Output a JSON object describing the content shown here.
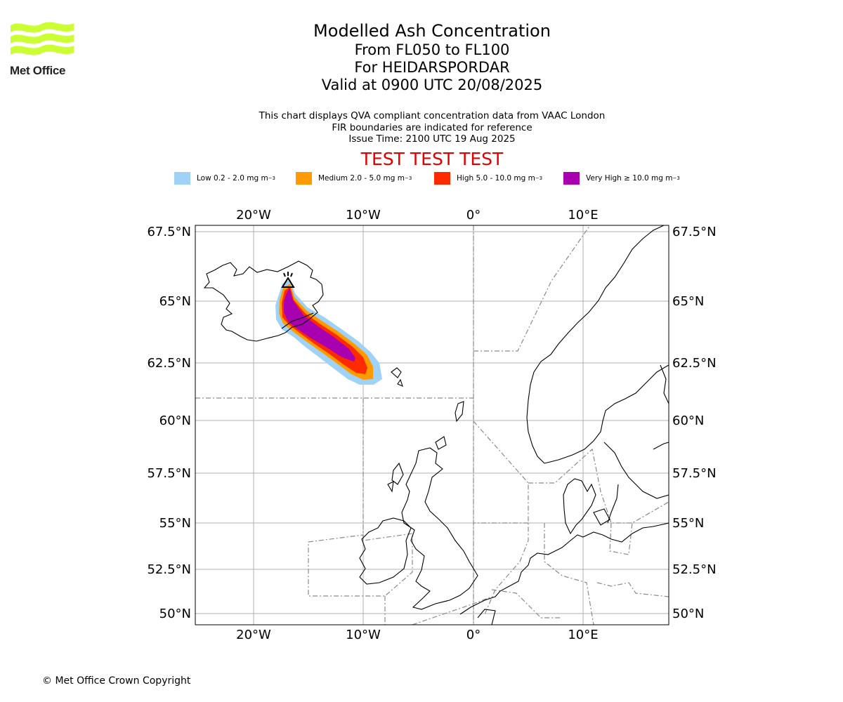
{
  "logo": {
    "text": "Met Office",
    "color": "#ccff33"
  },
  "title": {
    "main": "Modelled Ash Concentration",
    "levels": "From FL050 to FL100",
    "volcano": "For HEIDARSPORDAR",
    "valid": "Valid at 0900 UTC 20/08/2025"
  },
  "subtitle": {
    "line1": "This chart displays QVA compliant concentration data from VAAC London",
    "line2": "FIR boundaries are indicated for reference",
    "line3": "Issue Time: 2100 UTC 19 Aug 2025"
  },
  "test_banner": "TEST TEST TEST",
  "legend": [
    {
      "label": "Low 0.2 - 2.0 mg m",
      "color": "#a0d2f8"
    },
    {
      "label": "Medium 2.0 - 5.0 mg m",
      "color": "#ff9a00"
    },
    {
      "label": "High 5.0 - 10.0 mg m",
      "color": "#ff2a00"
    },
    {
      "label": "Very High ≥ 10.0 mg m",
      "color": "#a800b0"
    }
  ],
  "legend_unit_exponent": "−3",
  "axes": {
    "lon_labels": [
      "20°W",
      "10°W",
      "0°",
      "10°E"
    ],
    "lat_labels": [
      "67.5°N",
      "65°N",
      "62.5°N",
      "60°N",
      "57.5°N",
      "55°N",
      "52.5°N",
      "50°N"
    ]
  },
  "copyright": "© Met Office Crown Copyright"
}
